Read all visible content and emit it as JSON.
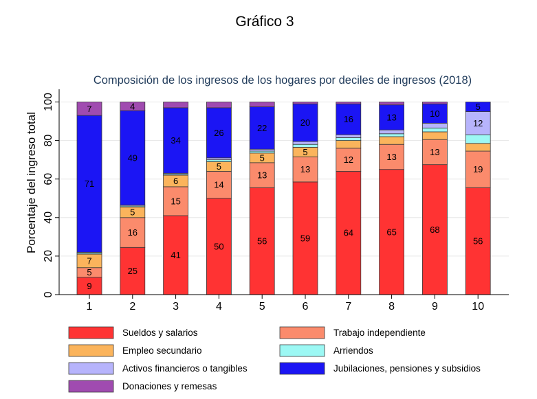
{
  "header": {
    "title": "Gráfico 3"
  },
  "chart_data": {
    "type": "bar",
    "stacked": true,
    "title": "Composición de los ingresos de los hogares por deciles de ingresos (2018)",
    "xlabel": "",
    "ylabel": "Porcentaje del ingreso total",
    "ylim": [
      0,
      100
    ],
    "yticks": [
      0,
      20,
      40,
      60,
      80,
      100
    ],
    "grid": true,
    "legend_position": "bottom",
    "categories": [
      "1",
      "2",
      "3",
      "4",
      "5",
      "6",
      "7",
      "8",
      "9",
      "10"
    ],
    "series": [
      {
        "name": "Sueldos y salarios",
        "color": "#ff3333",
        "values": [
          9,
          24.5,
          41,
          50,
          55.5,
          58.5,
          64,
          65,
          67.5,
          55.5
        ],
        "labels": [
          "9",
          "25",
          "41",
          "50",
          "56",
          "59",
          "64",
          "65",
          "68",
          "56"
        ]
      },
      {
        "name": "Trabajo independiente",
        "color": "#fb8b6c",
        "values": [
          5,
          15.5,
          15,
          14,
          13,
          13,
          12,
          13,
          13,
          19
        ],
        "labels": [
          "5",
          "16",
          "15",
          "14",
          "13",
          "13",
          "12",
          "13",
          "13",
          "19"
        ]
      },
      {
        "name": "Empleo secundario",
        "color": "#fbb45c",
        "values": [
          7,
          5.5,
          6,
          5,
          5,
          5,
          4,
          4,
          4,
          4
        ],
        "labels": [
          "7",
          "5",
          "6",
          "5",
          "5",
          "5",
          "",
          "",
          "",
          ""
        ]
      },
      {
        "name": "Arriendos",
        "color": "#9cf8f4",
        "values": [
          0.6,
          0.5,
          0.5,
          1,
          1,
          1.5,
          1.5,
          1.5,
          2,
          4.5
        ],
        "labels": [
          "",
          "",
          "",
          "",
          "",
          "",
          "",
          "",
          "",
          ""
        ]
      },
      {
        "name": "Activos financieros o tangibles",
        "color": "#b7b4fc",
        "values": [
          0.4,
          0.5,
          0.5,
          1,
          1,
          1.5,
          1.5,
          2,
          2.5,
          12
        ],
        "labels": [
          "",
          "",
          "",
          "",
          "",
          "",
          "",
          "",
          "",
          "12"
        ]
      },
      {
        "name": "Jubilaciones, pensiones y subsidios",
        "color": "#1b15f4",
        "values": [
          71,
          49,
          34,
          26,
          22,
          19.5,
          16,
          13,
          10,
          5
        ],
        "labels": [
          "71",
          "49",
          "34",
          "26",
          "22",
          "20",
          "16",
          "13",
          "10",
          "5"
        ]
      },
      {
        "name": "Donaciones y remesas",
        "color": "#a04bb0",
        "values": [
          7,
          4.5,
          3,
          3,
          2.5,
          1,
          1,
          1.5,
          1,
          0
        ],
        "labels": [
          "7",
          "4",
          "",
          "",
          "",
          "",
          "",
          "",
          "",
          ""
        ]
      }
    ]
  }
}
